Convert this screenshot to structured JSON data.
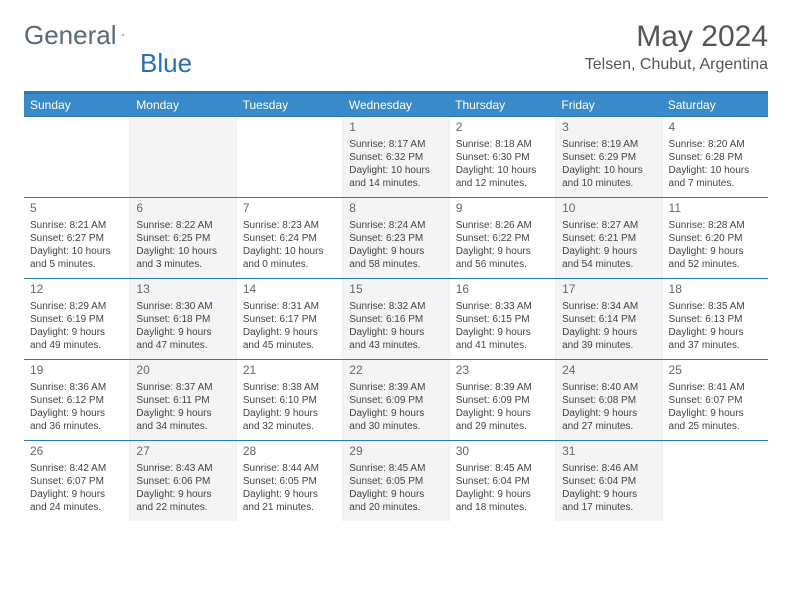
{
  "brand": {
    "name1": "General",
    "name2": "Blue"
  },
  "title": "May 2024",
  "location": "Telsen, Chubut, Argentina",
  "colors": {
    "brand_blue": "#2a6fb4",
    "header_bg": "#3a8ac9",
    "border": "#2b7ab8",
    "alt_row": "#f4f4f4",
    "text": "#444444",
    "title_text": "#555555"
  },
  "dow": [
    "Sunday",
    "Monday",
    "Tuesday",
    "Wednesday",
    "Thursday",
    "Friday",
    "Saturday"
  ],
  "weeks": [
    [
      null,
      null,
      null,
      {
        "n": "1",
        "sr": "Sunrise: 8:17 AM",
        "ss": "Sunset: 6:32 PM",
        "dl": "Daylight: 10 hours and 14 minutes."
      },
      {
        "n": "2",
        "sr": "Sunrise: 8:18 AM",
        "ss": "Sunset: 6:30 PM",
        "dl": "Daylight: 10 hours and 12 minutes."
      },
      {
        "n": "3",
        "sr": "Sunrise: 8:19 AM",
        "ss": "Sunset: 6:29 PM",
        "dl": "Daylight: 10 hours and 10 minutes."
      },
      {
        "n": "4",
        "sr": "Sunrise: 8:20 AM",
        "ss": "Sunset: 6:28 PM",
        "dl": "Daylight: 10 hours and 7 minutes."
      }
    ],
    [
      {
        "n": "5",
        "sr": "Sunrise: 8:21 AM",
        "ss": "Sunset: 6:27 PM",
        "dl": "Daylight: 10 hours and 5 minutes."
      },
      {
        "n": "6",
        "sr": "Sunrise: 8:22 AM",
        "ss": "Sunset: 6:25 PM",
        "dl": "Daylight: 10 hours and 3 minutes."
      },
      {
        "n": "7",
        "sr": "Sunrise: 8:23 AM",
        "ss": "Sunset: 6:24 PM",
        "dl": "Daylight: 10 hours and 0 minutes."
      },
      {
        "n": "8",
        "sr": "Sunrise: 8:24 AM",
        "ss": "Sunset: 6:23 PM",
        "dl": "Daylight: 9 hours and 58 minutes."
      },
      {
        "n": "9",
        "sr": "Sunrise: 8:26 AM",
        "ss": "Sunset: 6:22 PM",
        "dl": "Daylight: 9 hours and 56 minutes."
      },
      {
        "n": "10",
        "sr": "Sunrise: 8:27 AM",
        "ss": "Sunset: 6:21 PM",
        "dl": "Daylight: 9 hours and 54 minutes."
      },
      {
        "n": "11",
        "sr": "Sunrise: 8:28 AM",
        "ss": "Sunset: 6:20 PM",
        "dl": "Daylight: 9 hours and 52 minutes."
      }
    ],
    [
      {
        "n": "12",
        "sr": "Sunrise: 8:29 AM",
        "ss": "Sunset: 6:19 PM",
        "dl": "Daylight: 9 hours and 49 minutes."
      },
      {
        "n": "13",
        "sr": "Sunrise: 8:30 AM",
        "ss": "Sunset: 6:18 PM",
        "dl": "Daylight: 9 hours and 47 minutes."
      },
      {
        "n": "14",
        "sr": "Sunrise: 8:31 AM",
        "ss": "Sunset: 6:17 PM",
        "dl": "Daylight: 9 hours and 45 minutes."
      },
      {
        "n": "15",
        "sr": "Sunrise: 8:32 AM",
        "ss": "Sunset: 6:16 PM",
        "dl": "Daylight: 9 hours and 43 minutes."
      },
      {
        "n": "16",
        "sr": "Sunrise: 8:33 AM",
        "ss": "Sunset: 6:15 PM",
        "dl": "Daylight: 9 hours and 41 minutes."
      },
      {
        "n": "17",
        "sr": "Sunrise: 8:34 AM",
        "ss": "Sunset: 6:14 PM",
        "dl": "Daylight: 9 hours and 39 minutes."
      },
      {
        "n": "18",
        "sr": "Sunrise: 8:35 AM",
        "ss": "Sunset: 6:13 PM",
        "dl": "Daylight: 9 hours and 37 minutes."
      }
    ],
    [
      {
        "n": "19",
        "sr": "Sunrise: 8:36 AM",
        "ss": "Sunset: 6:12 PM",
        "dl": "Daylight: 9 hours and 36 minutes."
      },
      {
        "n": "20",
        "sr": "Sunrise: 8:37 AM",
        "ss": "Sunset: 6:11 PM",
        "dl": "Daylight: 9 hours and 34 minutes."
      },
      {
        "n": "21",
        "sr": "Sunrise: 8:38 AM",
        "ss": "Sunset: 6:10 PM",
        "dl": "Daylight: 9 hours and 32 minutes."
      },
      {
        "n": "22",
        "sr": "Sunrise: 8:39 AM",
        "ss": "Sunset: 6:09 PM",
        "dl": "Daylight: 9 hours and 30 minutes."
      },
      {
        "n": "23",
        "sr": "Sunrise: 8:39 AM",
        "ss": "Sunset: 6:09 PM",
        "dl": "Daylight: 9 hours and 29 minutes."
      },
      {
        "n": "24",
        "sr": "Sunrise: 8:40 AM",
        "ss": "Sunset: 6:08 PM",
        "dl": "Daylight: 9 hours and 27 minutes."
      },
      {
        "n": "25",
        "sr": "Sunrise: 8:41 AM",
        "ss": "Sunset: 6:07 PM",
        "dl": "Daylight: 9 hours and 25 minutes."
      }
    ],
    [
      {
        "n": "26",
        "sr": "Sunrise: 8:42 AM",
        "ss": "Sunset: 6:07 PM",
        "dl": "Daylight: 9 hours and 24 minutes."
      },
      {
        "n": "27",
        "sr": "Sunrise: 8:43 AM",
        "ss": "Sunset: 6:06 PM",
        "dl": "Daylight: 9 hours and 22 minutes."
      },
      {
        "n": "28",
        "sr": "Sunrise: 8:44 AM",
        "ss": "Sunset: 6:05 PM",
        "dl": "Daylight: 9 hours and 21 minutes."
      },
      {
        "n": "29",
        "sr": "Sunrise: 8:45 AM",
        "ss": "Sunset: 6:05 PM",
        "dl": "Daylight: 9 hours and 20 minutes."
      },
      {
        "n": "30",
        "sr": "Sunrise: 8:45 AM",
        "ss": "Sunset: 6:04 PM",
        "dl": "Daylight: 9 hours and 18 minutes."
      },
      {
        "n": "31",
        "sr": "Sunrise: 8:46 AM",
        "ss": "Sunset: 6:04 PM",
        "dl": "Daylight: 9 hours and 17 minutes."
      },
      null
    ]
  ]
}
